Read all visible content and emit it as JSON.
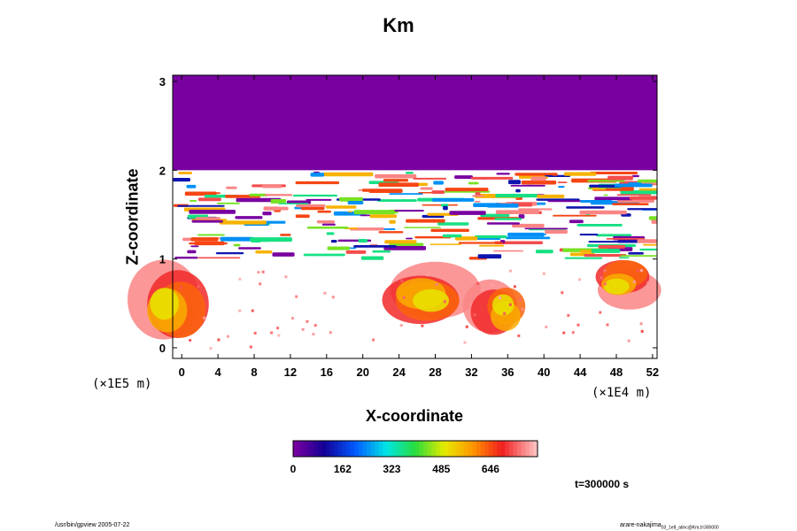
{
  "chart_data": {
    "type": "heatmap",
    "title": "Km",
    "xlabel": "X-coordinate",
    "ylabel": "Z-coordinate",
    "x_unit": "(×1E4 m)",
    "y_unit": "(×1E5 m)",
    "x_ticks": [
      "0",
      "4",
      "8",
      "12",
      "16",
      "20",
      "24",
      "28",
      "32",
      "36",
      "40",
      "44",
      "48",
      "52"
    ],
    "y_ticks": [
      "0",
      "1",
      "2",
      "3"
    ],
    "xlim": [
      -1,
      52.5
    ],
    "ylim": [
      -0.12,
      3.07
    ],
    "colorbar": {
      "min": 0,
      "max": 800,
      "tick_labels": [
        "0",
        "162",
        "323",
        "485",
        "646"
      ],
      "tick_values": [
        0,
        162,
        323,
        485,
        646
      ]
    },
    "field_description_regions": {
      "upper_uniform_value": 0,
      "turbulent_layer_z": [
        1.0,
        2.0
      ],
      "lower_plumes_x": [
        [
          -1,
          4
        ],
        [
          23,
          40
        ],
        [
          45,
          52.5
        ]
      ]
    },
    "annotation": "t=300000 s"
  },
  "footer": {
    "left": "/usr/bin/gpview 2005-07-22",
    "right_main": "arare-nakajima",
    "right_sub": "03_1e8_atinc@Km,t=300000"
  }
}
